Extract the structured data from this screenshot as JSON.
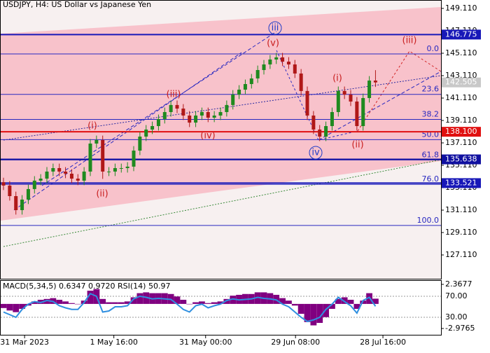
{
  "chart_data": {
    "type": "candlestick",
    "title": "USDJPY, H4:  US Dollar vs Japanese Yen",
    "x": [
      0,
      1,
      2,
      3,
      4,
      5,
      6,
      7,
      8,
      9,
      10,
      11,
      12,
      13,
      14,
      15,
      16,
      17,
      18,
      19,
      20,
      21,
      22,
      23,
      24,
      25,
      26,
      27,
      28,
      29,
      30,
      31,
      32,
      33,
      34,
      35,
      36,
      37,
      38,
      39,
      40,
      41,
      42,
      43,
      44,
      45,
      46,
      47,
      48,
      49,
      50,
      51,
      52,
      53,
      54,
      55,
      56,
      57,
      58,
      59,
      60
    ],
    "open": [
      133.6,
      133.3,
      132.36,
      131.11,
      132.05,
      132.99,
      133.74,
      133.92,
      134.55,
      134.86,
      134.55,
      134.36,
      133.92,
      133.74,
      134.55,
      137.05,
      137.36,
      134.55,
      134.55,
      134.86,
      134.86,
      134.99,
      136.42,
      137.67,
      138.3,
      138.61,
      139.24,
      139.86,
      140.49,
      140.17,
      139.55,
      138.92,
      139.55,
      139.86,
      139.36,
      139.55,
      139.86,
      140.49,
      141.42,
      141.86,
      142.36,
      142.86,
      143.61,
      144.11,
      144.55,
      144.74,
      144.36,
      144.11,
      143.3,
      141.74,
      139.55,
      138.3,
      137.67,
      138.61,
      139.86,
      141.74,
      141.42,
      140.8,
      138.61,
      141.11,
      142.67
    ],
    "high": [
      134.0,
      133.7,
      132.76,
      132.45,
      133.39,
      134.14,
      134.32,
      134.95,
      135.26,
      135.26,
      134.95,
      134.76,
      134.32,
      134.95,
      137.45,
      137.76,
      137.76,
      134.95,
      135.26,
      135.26,
      135.39,
      136.82,
      138.07,
      138.7,
      139.01,
      139.64,
      140.26,
      140.89,
      140.89,
      140.57,
      139.95,
      139.95,
      140.26,
      140.26,
      139.95,
      140.26,
      140.89,
      141.82,
      142.26,
      142.76,
      143.26,
      144.01,
      144.51,
      144.95,
      145.14,
      145.14,
      144.76,
      144.51,
      143.7,
      142.14,
      139.95,
      138.7,
      139.01,
      140.26,
      142.14,
      142.14,
      141.82,
      141.2,
      141.51,
      143.07,
      143.6
    ],
    "low": [
      132.9,
      131.96,
      130.71,
      130.71,
      131.65,
      132.59,
      133.34,
      133.52,
      134.15,
      134.15,
      133.96,
      133.52,
      133.34,
      133.34,
      134.15,
      136.65,
      133.9,
      134.15,
      134.15,
      134.46,
      134.46,
      134.59,
      136.02,
      137.27,
      137.9,
      138.21,
      138.84,
      139.46,
      139.77,
      139.15,
      138.52,
      138.52,
      139.15,
      138.96,
      138.96,
      139.15,
      139.46,
      140.09,
      141.02,
      141.46,
      141.96,
      142.46,
      143.21,
      143.71,
      144.15,
      143.96,
      143.71,
      142.9,
      141.34,
      139.15,
      137.9,
      137.27,
      137.27,
      138.21,
      139.46,
      141.02,
      140.4,
      138.21,
      138.21,
      140.71,
      142.1
    ],
    "close": [
      133.3,
      132.36,
      131.11,
      132.05,
      132.99,
      133.74,
      133.92,
      134.55,
      134.86,
      134.55,
      134.36,
      133.92,
      133.74,
      134.55,
      137.05,
      137.36,
      134.55,
      134.55,
      134.86,
      134.86,
      134.99,
      136.42,
      137.67,
      138.3,
      138.61,
      139.24,
      139.86,
      140.49,
      140.17,
      139.55,
      138.92,
      139.55,
      139.86,
      139.36,
      139.55,
      139.86,
      140.49,
      141.42,
      141.86,
      142.36,
      142.86,
      143.61,
      144.11,
      144.55,
      144.74,
      144.36,
      144.11,
      143.3,
      141.74,
      139.55,
      138.3,
      137.67,
      138.61,
      139.86,
      141.74,
      141.42,
      140.8,
      138.61,
      141.11,
      142.67,
      142.505
    ],
    "up_color": "#1f8a1f",
    "down_color": "#b01818",
    "xlim": [
      0,
      70
    ],
    "xticks": [
      {
        "value": 3.4,
        "label": "31 Mar 2023"
      },
      {
        "value": 17.8,
        "label": "1 May 16:00"
      },
      {
        "value": 32.6,
        "label": "31 May 00:00"
      },
      {
        "value": 47.1,
        "label": "29 Jun 08:00"
      },
      {
        "value": 61.2,
        "label": "28 Jul 16:00"
      }
    ],
    "ylim": [
      124.985,
      149.86
    ],
    "yticks": [
      {
        "value": 149.11,
        "label": "149.110"
      },
      {
        "value": 147.11,
        "label": "147.110"
      },
      {
        "value": 145.11,
        "label": "145.110"
      },
      {
        "value": 143.11,
        "label": "143.110"
      },
      {
        "value": 141.11,
        "label": "141.110"
      },
      {
        "value": 139.11,
        "label": "139.110"
      },
      {
        "value": 137.11,
        "label": "137.110"
      },
      {
        "value": 135.11,
        "label": "135.110"
      },
      {
        "value": 133.11,
        "label": "133.110"
      },
      {
        "value": 131.11,
        "label": "131.110"
      },
      {
        "value": 129.11,
        "label": "129.110"
      },
      {
        "value": 127.11,
        "label": "127.110"
      }
    ],
    "price_lines": [
      {
        "value": 146.775,
        "label": "146.775",
        "color": "#1818b8",
        "draw_line": true
      },
      {
        "value": 142.505,
        "label": "142.505",
        "color": "#c8c8c8",
        "draw_line": false
      },
      {
        "value": 138.1,
        "label": "138.100",
        "color": "#e01010",
        "draw_line": true
      },
      {
        "value": 135.638,
        "label": "135.638",
        "color": "#1010a0",
        "draw_line": true
      },
      {
        "value": 133.521,
        "label": "133.521",
        "color": "#1818b8",
        "draw_line": true
      }
    ],
    "fibo": [
      {
        "label": "0.0",
        "price": 145.05
      },
      {
        "label": "23.6",
        "price": 141.44
      },
      {
        "label": "38.2",
        "price": 139.2
      },
      {
        "label": "50.0",
        "price": 137.4
      },
      {
        "label": "61.8",
        "price": 135.59
      },
      {
        "label": "76.0",
        "price": 133.41
      },
      {
        "label": "100.0",
        "price": 129.74
      }
    ],
    "fibo_color": "#2828c0",
    "wave_labels": [
      {
        "text": "iii",
        "color": "#1e3cc8",
        "circled": true
      },
      {
        "text": "(v)",
        "color": "#c81e1e",
        "circled": false
      },
      {
        "text": "(iii)",
        "color": "#c81e1e",
        "circled": false
      },
      {
        "text": "(i)",
        "color": "#c81e1e",
        "circled": false
      },
      {
        "text": "(ii)",
        "color": "#c81e1e",
        "circled": false
      },
      {
        "text": "(iv)",
        "color": "#c81e1e",
        "circled": false
      },
      {
        "text": "iv",
        "color": "#1e3cc8",
        "circled": true
      },
      {
        "text": "(i)",
        "color": "#c81e1e",
        "circled": false
      },
      {
        "text": "(ii)",
        "color": "#c81e1e",
        "circled": false
      },
      {
        "text": "(iii)",
        "color": "#c81e1e",
        "circled": false
      }
    ],
    "indicator": {
      "title": "MACD(5,34,5) 0.6347 0.9720 RSI(14) 50.97",
      "macd": [
        -0.5,
        -0.8,
        -1.0,
        -0.6,
        -0.2,
        0.3,
        0.5,
        0.6,
        0.7,
        0.5,
        0.3,
        0.1,
        0.0,
        0.4,
        1.6,
        1.8,
        0.6,
        0.2,
        0.2,
        0.2,
        0.3,
        0.8,
        1.3,
        1.4,
        1.3,
        1.3,
        1.3,
        1.2,
        0.9,
        0.5,
        0.0,
        0.2,
        0.3,
        0.1,
        0.2,
        0.3,
        0.6,
        1.0,
        1.1,
        1.2,
        1.2,
        1.4,
        1.4,
        1.3,
        1.1,
        0.7,
        0.4,
        -0.2,
        -1.2,
        -2.2,
        -2.6,
        -2.3,
        -1.6,
        -0.6,
        0.6,
        0.8,
        0.5,
        -0.6,
        0.4,
        1.3,
        0.6347
      ],
      "macd_color": "#800080",
      "macd_ylim": [
        -2.9765,
        2.3677
      ],
      "macd_yticks": [
        2.3677,
        -2.9765
      ],
      "rsi": [
        40,
        35,
        30,
        45,
        55,
        60,
        58,
        62,
        60,
        52,
        48,
        45,
        45,
        58,
        75,
        70,
        40,
        42,
        50,
        50,
        52,
        65,
        70,
        68,
        65,
        66,
        65,
        64,
        55,
        45,
        40,
        52,
        55,
        48,
        52,
        55,
        62,
        65,
        63,
        64,
        65,
        68,
        66,
        65,
        63,
        55,
        50,
        40,
        30,
        22,
        25,
        30,
        45,
        55,
        68,
        60,
        52,
        38,
        62,
        68,
        50.97
      ],
      "rsi_color": "#2f8fe0",
      "rsi_ylim": [
        0,
        100
      ],
      "rsi_yticks": [
        {
          "value": 70,
          "label": "70.00"
        },
        {
          "value": 30,
          "label": "30.00"
        }
      ]
    }
  }
}
